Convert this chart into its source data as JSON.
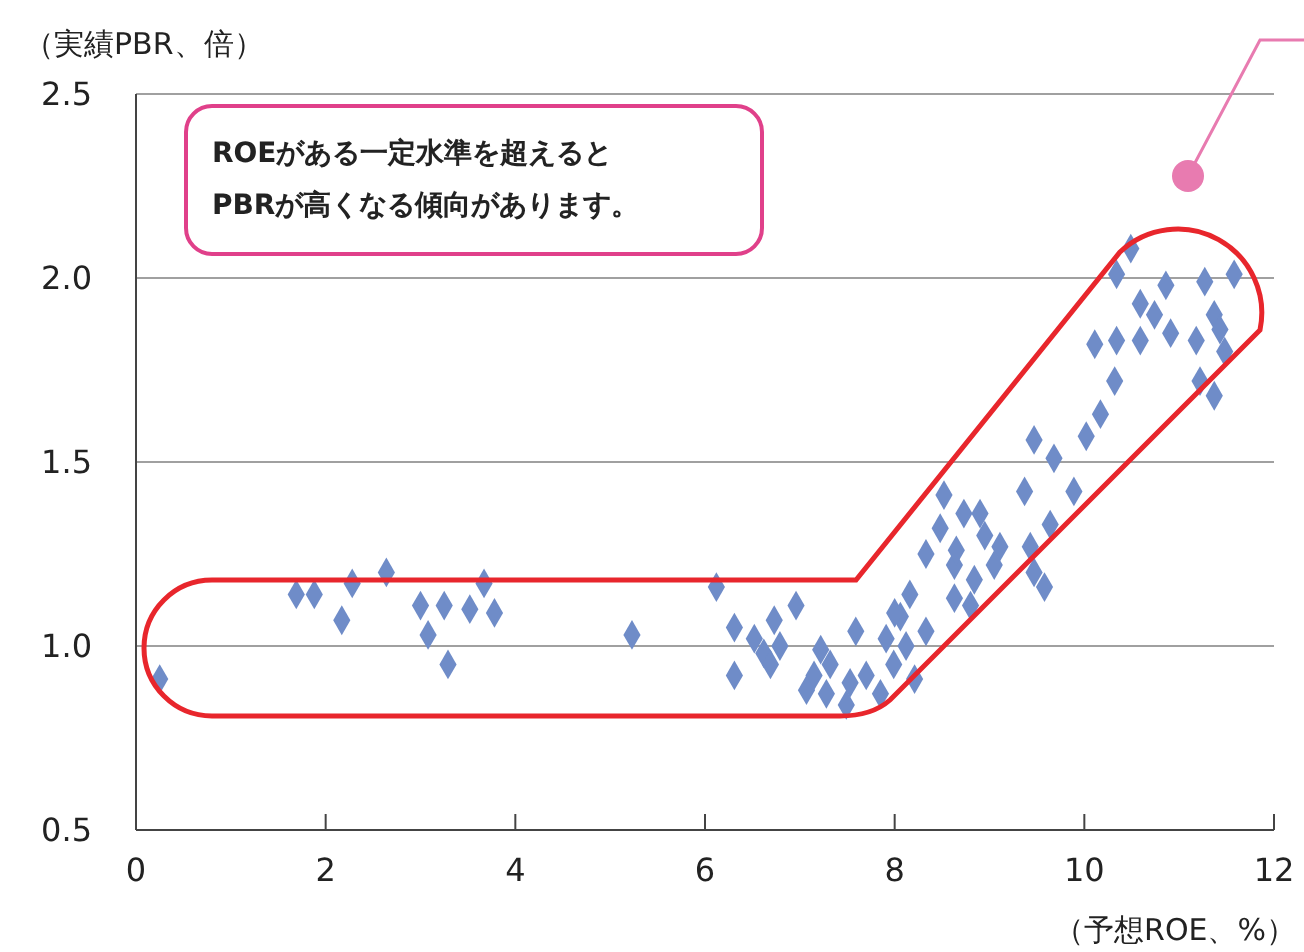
{
  "chart_data": {
    "type": "scatter",
    "ylabel": "（実績PBR、倍）",
    "xlabel": "（予想ROE、%）",
    "annotations": [
      "ROEがある一定水準を超えると\nPBRが高くなる傾向があります。"
    ],
    "xlim": [
      0,
      12
    ],
    "xticks": [
      0,
      2,
      4,
      6,
      8,
      10,
      12
    ],
    "ylim": [
      0.5,
      2.5
    ],
    "yticks": [
      0.5,
      {
        "value": 1,
        "label": "1.0"
      },
      1.5,
      {
        "value": 2,
        "label": "2.0"
      },
      2.5
    ],
    "grid": "y",
    "marker": "diamond",
    "series": [
      {
        "color": "#6f8cc8",
        "x": [
          0.25,
          1.69,
          1.88,
          2.28,
          2.64,
          2.17,
          3.0,
          3.25,
          3.08,
          3.29,
          3.52,
          3.67,
          3.78,
          5.23,
          6.12,
          6.31,
          6.52,
          6.73,
          6.96,
          6.79,
          6.62,
          6.31,
          6.69,
          7.22,
          7.15,
          7.32,
          7.07,
          7.28,
          7.49,
          7.53,
          7.59,
          7.7,
          7.85,
          7.99,
          7.91,
          8.12,
          8.06,
          8.16,
          8.33,
          8.21,
          10.49,
          10.34,
          10.86,
          11.27,
          11.58,
          10.59,
          10.74,
          10.91,
          11.37,
          11.43,
          11.18,
          10.59,
          10.34,
          10.11,
          11.48,
          10.32,
          11.22,
          11.37,
          10.17,
          10.02,
          9.47,
          9.68,
          9.37,
          9.89,
          9.64,
          9.43,
          8.52,
          8.73,
          8.9,
          8.95,
          8.33,
          8.63,
          8.84,
          9.11,
          9.05,
          9.47,
          9.58,
          8.0,
          8.63,
          8.8,
          8.48,
          8.65
        ],
        "values": [
          0.91,
          1.14,
          1.14,
          1.17,
          1.2,
          1.07,
          1.11,
          1.11,
          1.03,
          0.95,
          1.1,
          1.17,
          1.09,
          1.03,
          1.16,
          1.05,
          1.02,
          1.07,
          1.11,
          1.0,
          0.98,
          0.92,
          0.95,
          0.99,
          0.92,
          0.95,
          0.88,
          0.87,
          0.84,
          0.9,
          1.04,
          0.92,
          0.87,
          0.95,
          1.02,
          1.0,
          1.08,
          1.14,
          1.04,
          0.91,
          2.08,
          2.01,
          1.98,
          1.99,
          2.01,
          1.93,
          1.9,
          1.85,
          1.9,
          1.86,
          1.83,
          1.83,
          1.83,
          1.82,
          1.8,
          1.72,
          1.72,
          1.68,
          1.63,
          1.57,
          1.56,
          1.51,
          1.42,
          1.42,
          1.33,
          1.27,
          1.41,
          1.36,
          1.36,
          1.3,
          1.25,
          1.22,
          1.18,
          1.27,
          1.22,
          1.2,
          1.16,
          1.09,
          1.13,
          1.11,
          1.32,
          1.26
        ]
      }
    ]
  }
}
